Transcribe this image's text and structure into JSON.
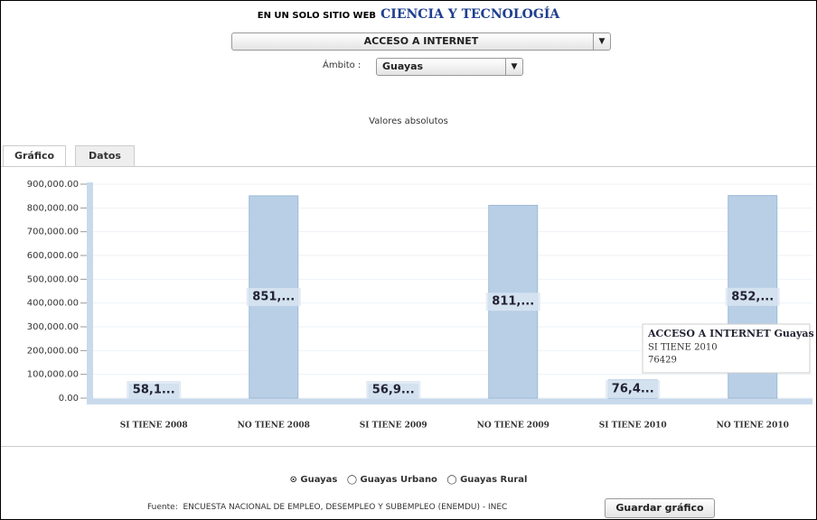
{
  "header": {
    "prefix": "EN UN SOLO SITIO WEB",
    "title": "CIENCIA Y TECNOLOGÍA"
  },
  "controls": {
    "indicator": "ACCESO A INTERNET",
    "scope_label": "Ámbito :",
    "scope": "Guayas"
  },
  "tabs": [
    "Gráfico",
    "Datos"
  ],
  "chart_data": {
    "type": "bar",
    "subtitle": "Valores absolutos",
    "categories": [
      "SI TIENE 2008",
      "NO TIENE 2008",
      "SI TIENE 2009",
      "NO TIENE 2009",
      "SI TIENE 2010",
      "NO TIENE 2010"
    ],
    "values": [
      58100,
      851000,
      56900,
      811000,
      76429,
      852000
    ],
    "value_labels": [
      "58,1...",
      "851,...",
      "56,9...",
      "811,...",
      "76,4...",
      "852,..."
    ],
    "color": "#b8cfe6",
    "ylim": [
      0,
      900000
    ],
    "yticks": [
      {
        "value": 0,
        "label": "0.00"
      },
      {
        "value": 100000,
        "label": "100,000.00"
      },
      {
        "value": 200000,
        "label": "200,000.00"
      },
      {
        "value": 300000,
        "label": "300,000.00"
      },
      {
        "value": 400000,
        "label": "400,000.00"
      },
      {
        "value": 500000,
        "label": "500,000.00"
      },
      {
        "value": 600000,
        "label": "600,000.00"
      },
      {
        "value": 700000,
        "label": "700,000.00"
      },
      {
        "value": 800000,
        "label": "800,000.00"
      },
      {
        "value": 900000,
        "label": "900,000.00"
      }
    ],
    "grid": true,
    "tooltip": {
      "title": "ACCESO A INTERNET Guayas",
      "index": 4
    }
  },
  "footer": {
    "options": [
      "Guayas",
      "Guayas Urbano",
      "Guayas Rural"
    ],
    "source_label": "Fuente:",
    "source": "ENCUESTA NACIONAL DE EMPLEO, DESEMPLEO Y SUBEMPLEO (ENEMDU) - INEC",
    "button": "Guardar gráfico"
  }
}
